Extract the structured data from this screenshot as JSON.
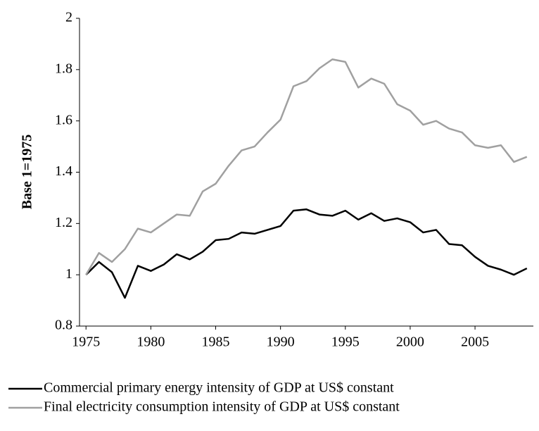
{
  "chart_data": {
    "type": "line",
    "y_label": "Base 1=1975",
    "x": [
      1975,
      1976,
      1977,
      1978,
      1979,
      1980,
      1981,
      1982,
      1983,
      1984,
      1985,
      1986,
      1987,
      1988,
      1989,
      1990,
      1991,
      1992,
      1993,
      1994,
      1995,
      1996,
      1997,
      1998,
      1999,
      2000,
      2001,
      2002,
      2003,
      2004,
      2005,
      2006,
      2007,
      2008,
      2009
    ],
    "series": [
      {
        "name": "Commercial primary energy intensity of GDP at US$ constant",
        "color": "#000000",
        "values": [
          1.0,
          1.05,
          1.01,
          0.91,
          1.035,
          1.015,
          1.04,
          1.08,
          1.06,
          1.09,
          1.135,
          1.14,
          1.165,
          1.16,
          1.175,
          1.19,
          1.25,
          1.255,
          1.235,
          1.23,
          1.25,
          1.215,
          1.24,
          1.21,
          1.22,
          1.205,
          1.165,
          1.175,
          1.12,
          1.115,
          1.07,
          1.035,
          1.02,
          1.0,
          1.025
        ]
      },
      {
        "name": "Final electricity consumption intensity of GDP at US$ constant",
        "color": "#a0a0a0",
        "values": [
          1.0,
          1.085,
          1.05,
          1.1,
          1.18,
          1.165,
          1.2,
          1.235,
          1.23,
          1.325,
          1.355,
          1.425,
          1.485,
          1.5,
          1.555,
          1.605,
          1.735,
          1.755,
          1.805,
          1.84,
          1.83,
          1.73,
          1.765,
          1.745,
          1.665,
          1.64,
          1.585,
          1.6,
          1.57,
          1.555,
          1.505,
          1.495,
          1.505,
          1.44,
          1.46
        ]
      }
    ],
    "xlim": [
      1974.5,
      2009.5
    ],
    "xticks": [
      1975,
      1980,
      1985,
      1990,
      1995,
      2000,
      2005
    ],
    "ylim": [
      0.8,
      2
    ],
    "yticks": [
      0.8,
      1,
      1.2,
      1.4,
      1.6,
      1.8,
      2
    ],
    "grid": false,
    "legend": "bottom"
  }
}
